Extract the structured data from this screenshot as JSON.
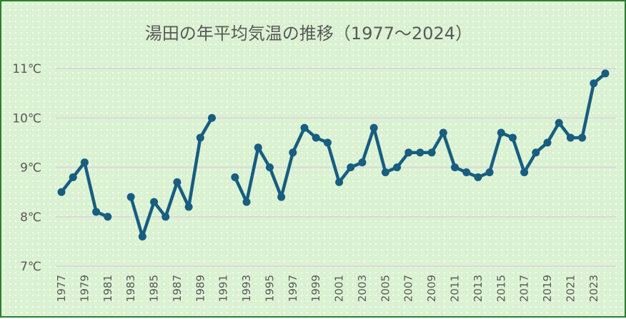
{
  "chart_data": {
    "type": "line",
    "title": "湯田の年平均気温の推移（1977～2024）",
    "xlabel": "",
    "ylabel": "",
    "ylim": [
      7,
      11
    ],
    "yticks": [
      "7℃",
      "8℃",
      "9℃",
      "10℃",
      "11℃"
    ],
    "ytick_values": [
      7,
      8,
      9,
      10,
      11
    ],
    "grid": true,
    "legend": "none",
    "line_color": "#175e80",
    "x": [
      1977,
      1978,
      1979,
      1980,
      1981,
      1982,
      1983,
      1984,
      1985,
      1986,
      1987,
      1988,
      1989,
      1990,
      1991,
      1992,
      1993,
      1994,
      1995,
      1996,
      1997,
      1998,
      1999,
      2000,
      2001,
      2002,
      2003,
      2004,
      2005,
      2006,
      2007,
      2008,
      2009,
      2010,
      2011,
      2012,
      2013,
      2014,
      2015,
      2016,
      2017,
      2018,
      2019,
      2020,
      2021,
      2022,
      2023,
      2024
    ],
    "xtick_labels": [
      "1977",
      "1979",
      "1981",
      "1983",
      "1985",
      "1987",
      "1989",
      "1991",
      "1993",
      "1995",
      "1997",
      "1999",
      "2001",
      "2003",
      "2005",
      "2007",
      "2009",
      "2011",
      "2013",
      "2015",
      "2017",
      "2019",
      "2021",
      "2023"
    ],
    "series": [
      {
        "name": "年平均気温",
        "values": [
          8.5,
          8.8,
          9.1,
          8.1,
          8.0,
          null,
          8.4,
          7.6,
          8.3,
          8.0,
          8.7,
          8.2,
          9.6,
          10.0,
          null,
          8.8,
          8.3,
          9.4,
          9.0,
          8.4,
          9.3,
          9.8,
          9.6,
          9.5,
          8.7,
          9.0,
          9.1,
          9.8,
          8.9,
          9.0,
          9.3,
          9.3,
          9.3,
          9.7,
          9.0,
          8.9,
          8.8,
          8.9,
          9.7,
          9.6,
          8.9,
          9.3,
          9.5,
          9.9,
          9.6,
          9.6,
          10.7,
          10.9
        ]
      }
    ]
  }
}
